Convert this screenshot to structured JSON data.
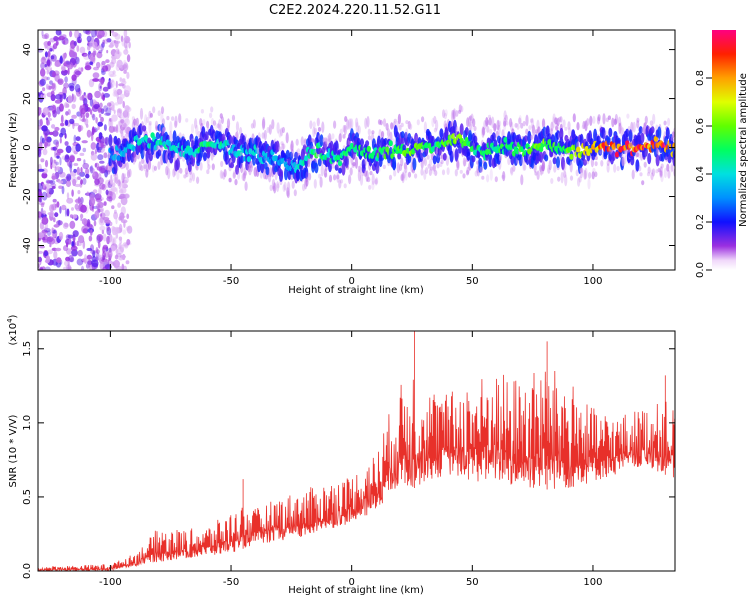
{
  "title": "C2E2.2024.220.11.52.G11",
  "chart_data": [
    {
      "type": "heatmap",
      "xlabel": "Height of straight line (km)",
      "ylabel": "Frequency (Hz)",
      "xlim": [
        -130,
        134
      ],
      "ylim": [
        -50,
        48
      ],
      "xticks": [
        -100,
        -50,
        0,
        50,
        100
      ],
      "xtick_labels": [
        "-100",
        "-50",
        "0",
        "50",
        "100"
      ],
      "yticks": [
        40,
        20,
        0,
        -20,
        -40
      ],
      "ytick_labels": [
        "40",
        "20",
        "0",
        "-20",
        "-40"
      ],
      "colorbar": {
        "label": "Normalized spectral amplitude",
        "range": [
          0,
          1
        ],
        "ticks": [
          0.0,
          0.2,
          0.4,
          0.6,
          0.8
        ],
        "tick_labels": [
          "0.0",
          "0.2",
          "0.4",
          "0.6",
          "0.8"
        ],
        "colors": [
          "#ffffff",
          "#e8c8f8",
          "#8a2be2",
          "#5a18e0",
          "#0000ff",
          "#00c8ff",
          "#00ff80",
          "#80ff00",
          "#ffff00",
          "#ff8000",
          "#ff0000",
          "#ff0080"
        ]
      },
      "noise_region_x": [
        -130,
        -100
      ],
      "ridge": {
        "x": [
          -100,
          -95,
          -90,
          -85,
          -80,
          -75,
          -70,
          -65,
          -60,
          -55,
          -50,
          -45,
          -40,
          -35,
          -30,
          -25,
          -22,
          -18,
          -15,
          -10,
          -5,
          0,
          5,
          10,
          15,
          20,
          25,
          30,
          35,
          40,
          45,
          50,
          55,
          60,
          65,
          70,
          75,
          80,
          85,
          90,
          95,
          100,
          105,
          110,
          115,
          120,
          125,
          130,
          134
        ],
        "freq": [
          -3,
          -2,
          1,
          3,
          2,
          0,
          -2,
          -1,
          3,
          1,
          -1,
          -3,
          -2,
          -4,
          -5,
          -8,
          -9,
          -3,
          -1,
          -3,
          -5,
          1,
          -2,
          -3,
          -1,
          0,
          -2,
          1,
          0,
          3,
          2,
          0,
          -2,
          -1,
          1,
          -1,
          0,
          1,
          0,
          -1,
          -1,
          0,
          1,
          0,
          0,
          0,
          1,
          2,
          -1
        ],
        "amplitude": [
          0.3,
          0.35,
          0.4,
          0.45,
          0.45,
          0.4,
          0.4,
          0.45,
          0.5,
          0.45,
          0.4,
          0.4,
          0.4,
          0.35,
          0.35,
          0.35,
          0.45,
          0.45,
          0.5,
          0.45,
          0.45,
          0.5,
          0.5,
          0.5,
          0.55,
          0.55,
          0.6,
          0.55,
          0.5,
          0.6,
          0.6,
          0.5,
          0.5,
          0.5,
          0.55,
          0.55,
          0.6,
          0.6,
          0.55,
          0.6,
          0.7,
          0.8,
          0.85,
          0.9,
          0.9,
          0.9,
          0.85,
          0.9,
          0.8
        ]
      }
    },
    {
      "type": "line",
      "xlabel": "Height of straight line (km)",
      "ylabel": "SNR (10 * V/V)",
      "scale_label": "(x10",
      "scale_exponent": "4",
      "xlim": [
        -130,
        134
      ],
      "ylim": [
        0,
        1.62
      ],
      "xticks": [
        -100,
        -50,
        0,
        50,
        100
      ],
      "xtick_labels": [
        "-100",
        "-50",
        "0",
        "50",
        "100"
      ],
      "yticks": [
        0.0,
        0.5,
        1.0,
        1.5
      ],
      "ytick_labels": [
        "0.0",
        "0.5",
        "1.0",
        "1.5"
      ],
      "color": "#e8302a",
      "envelope": {
        "x": [
          -130,
          -110,
          -100,
          -95,
          -90,
          -85,
          -80,
          -70,
          -60,
          -50,
          -45,
          -40,
          -30,
          -20,
          -10,
          0,
          10,
          15,
          20,
          25,
          30,
          40,
          50,
          60,
          70,
          80,
          90,
          100,
          110,
          120,
          130,
          134
        ],
        "low": [
          0.0,
          0.0,
          0.0,
          0.02,
          0.03,
          0.05,
          0.06,
          0.08,
          0.1,
          0.12,
          0.15,
          0.18,
          0.2,
          0.22,
          0.28,
          0.32,
          0.4,
          0.5,
          0.55,
          0.55,
          0.6,
          0.65,
          0.6,
          0.6,
          0.55,
          0.55,
          0.55,
          0.6,
          0.65,
          0.7,
          0.65,
          0.6
        ],
        "high": [
          0.03,
          0.04,
          0.05,
          0.08,
          0.12,
          0.2,
          0.3,
          0.28,
          0.3,
          0.4,
          0.45,
          0.42,
          0.5,
          0.55,
          0.6,
          0.65,
          0.8,
          1.05,
          1.25,
          1.4,
          1.25,
          1.2,
          1.3,
          1.35,
          1.3,
          1.4,
          1.3,
          1.1,
          1.05,
          1.1,
          1.15,
          1.1
        ]
      },
      "peaks": [
        {
          "x": 26,
          "y": 1.62
        },
        {
          "x": 81,
          "y": 1.55
        },
        {
          "x": -45,
          "y": 0.62
        },
        {
          "x": 130,
          "y": 1.32
        }
      ]
    }
  ]
}
